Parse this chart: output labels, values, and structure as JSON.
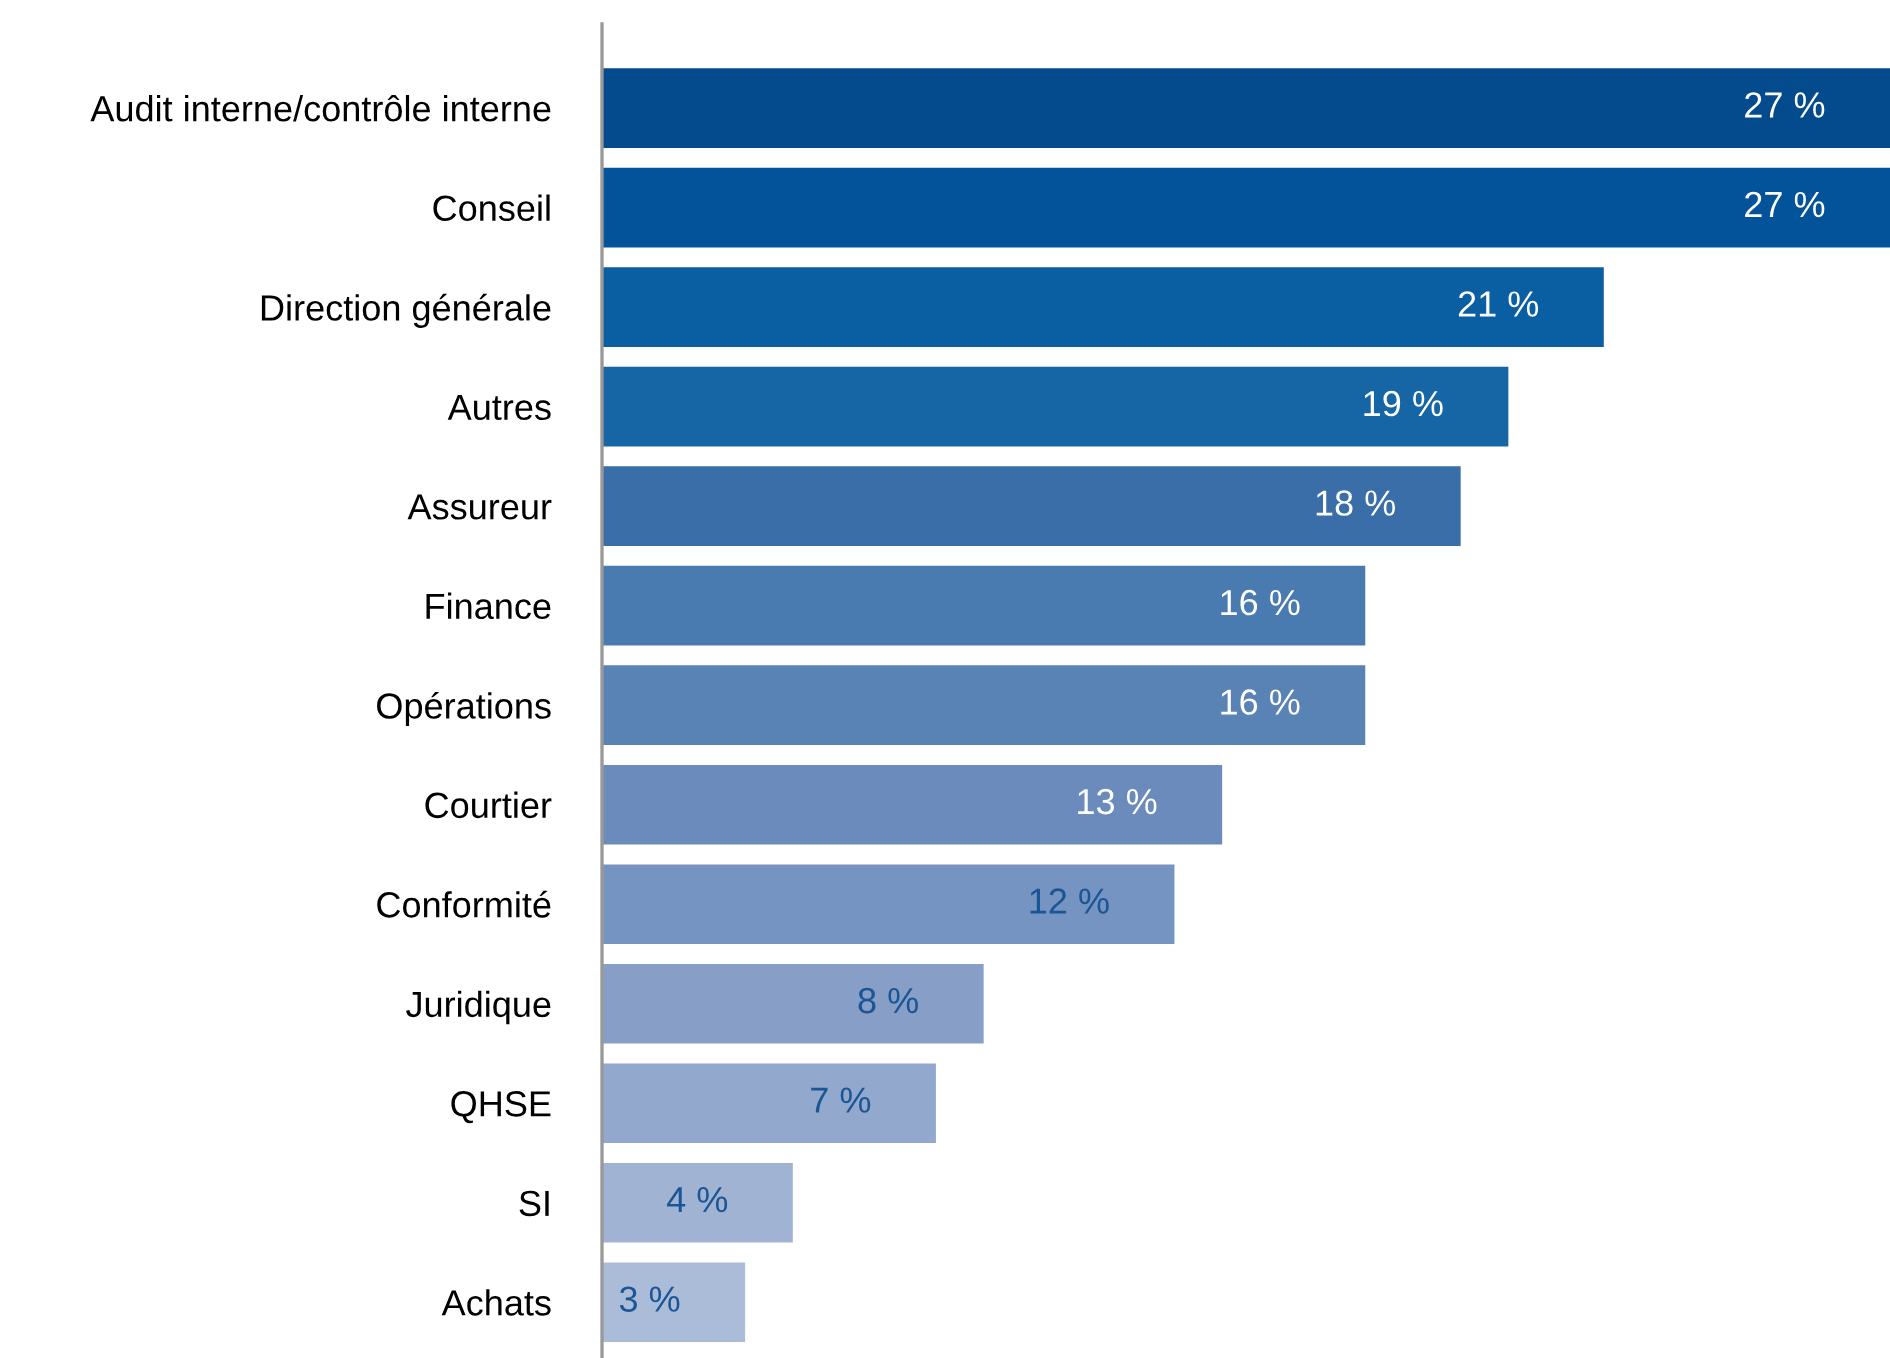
{
  "chart_data": {
    "type": "bar",
    "orientation": "horizontal",
    "categories": [
      "Audit interne/contrôle interne",
      "Conseil",
      "Direction générale",
      "Autres",
      "Assureur",
      "Finance",
      "Opérations",
      "Courtier",
      "Conformité",
      "Juridique",
      "QHSE",
      "SI",
      "Achats"
    ],
    "values": [
      27,
      27,
      21,
      19,
      18,
      16,
      16,
      13,
      12,
      8,
      7,
      4,
      3
    ],
    "value_labels": [
      "27 %",
      "27 %",
      "21 %",
      "19 %",
      "18 %",
      "16 %",
      "16 %",
      "13 %",
      "12 %",
      "8 %",
      "7 %",
      "4 %",
      "3 %"
    ],
    "colors": [
      "#034b8d",
      "#03539a",
      "#0a5fa3",
      "#1666a6",
      "#3a6ea8",
      "#4a7bb0",
      "#5a83b5",
      "#6a8bbb",
      "#7694c1",
      "#879fc7",
      "#92a8cc",
      "#a0b3d3",
      "#abbcd8"
    ],
    "grid": false,
    "legend": false
  }
}
